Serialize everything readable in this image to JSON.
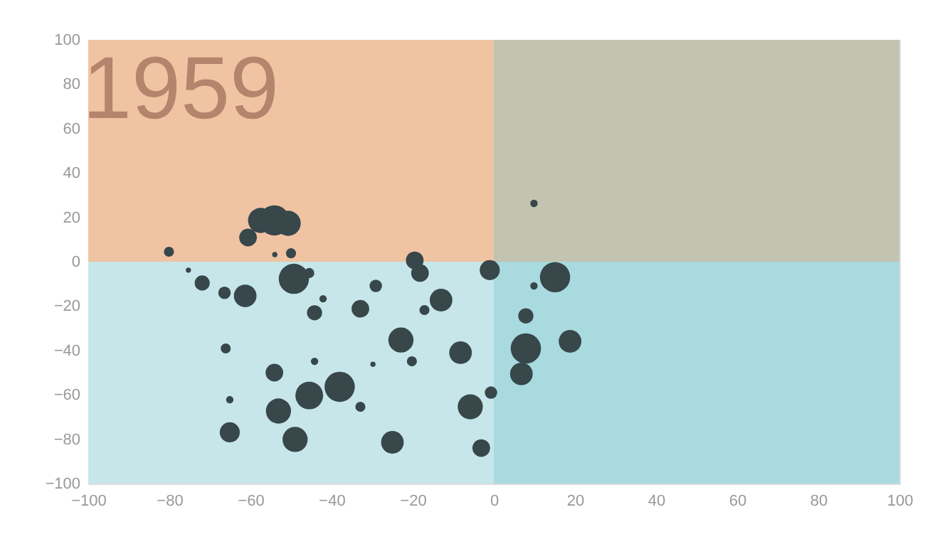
{
  "chart_data": {
    "type": "bubble",
    "annotations": [
      "1959"
    ],
    "x": [
      -80.1,
      -75.3,
      -71.9,
      -66.4,
      -61.3,
      -54.1,
      -57.5,
      -50.7,
      -60.6,
      -54,
      -50,
      -49.3,
      -45.5,
      -42.1,
      -44.2,
      -29.1,
      -32.9,
      -19.5,
      -18.2,
      -17.1,
      -13,
      -22.9,
      -1,
      -66.1,
      -44.2,
      -29.8,
      -20.2,
      -8.2,
      -54.1,
      -38,
      -45.5,
      -32.9,
      -65.1,
      -53.1,
      -0.7,
      -5.8,
      -65.1,
      -49,
      -25,
      -3.1,
      9.9,
      15.1,
      9.9,
      7.9,
      18.8,
      7.9,
      6.8
    ],
    "values": [
      4.5,
      -3.8,
      -9.6,
      -14,
      -15.4,
      18.6,
      18.6,
      17.3,
      10.9,
      3.2,
      3.8,
      -7.7,
      -5.1,
      -16.7,
      -23,
      -10.9,
      -21.2,
      0.6,
      -5.1,
      -21.8,
      -17.3,
      -35.3,
      -3.8,
      -39.1,
      -44.9,
      -46.2,
      -44.9,
      -41,
      -50,
      -56.4,
      -60.3,
      -65.4,
      -62.2,
      -67.3,
      -59,
      -65.4,
      -76.9,
      -80.1,
      -81.4,
      -84,
      26.3,
      -7,
      -10.9,
      -24.4,
      -35.9,
      -39.1,
      -50.6
    ],
    "sizes": [
      0.11,
      0.03,
      0.25,
      0.17,
      0.56,
      1,
      0.69,
      0.69,
      0.34,
      0.03,
      0.11,
      1,
      0.11,
      0.06,
      0.25,
      0.17,
      0.34,
      0.34,
      0.34,
      0.11,
      0.56,
      0.69,
      0.44,
      0.11,
      0.06,
      0.03,
      0.11,
      0.56,
      0.34,
      1,
      0.84,
      0.11,
      0.06,
      0.69,
      0.17,
      0.69,
      0.44,
      0.69,
      0.56,
      0.34,
      0.06,
      1,
      0.06,
      0.25,
      0.56,
      1,
      0.56
    ],
    "color": "#37474a",
    "xlim": [
      -100,
      100
    ],
    "ylim": [
      -100,
      100
    ],
    "xticks": [
      -100,
      -80,
      -60,
      -40,
      -20,
      0,
      20,
      40,
      60,
      80,
      100
    ],
    "yticks": [
      -100,
      -80,
      -60,
      -40,
      -20,
      0,
      20,
      40,
      60,
      80,
      100
    ],
    "bands": [
      {
        "axis": "y",
        "from": 0,
        "to": 100,
        "color": "#f0c3a2"
      },
      {
        "axis": "y",
        "from": -100,
        "to": 0,
        "color": "#c6e6ea"
      },
      {
        "axis": "x",
        "from": 0,
        "to": 100,
        "color": "#6fc3cf"
      }
    ]
  }
}
